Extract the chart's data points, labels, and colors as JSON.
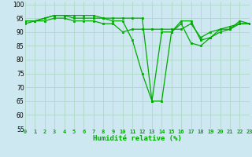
{
  "title": "",
  "xlabel": "Humidité relative (%)",
  "ylabel": "",
  "bg_color": "#cde8f0",
  "grid_color": "#b0d8c8",
  "line_color": "#00aa00",
  "xlim": [
    0,
    23
  ],
  "ylim": [
    55,
    101
  ],
  "yticks": [
    55,
    60,
    65,
    70,
    75,
    80,
    85,
    90,
    95,
    100
  ],
  "xticks": [
    0,
    1,
    2,
    3,
    4,
    5,
    6,
    7,
    8,
    9,
    10,
    11,
    12,
    13,
    14,
    15,
    16,
    17,
    18,
    19,
    20,
    21,
    22,
    23
  ],
  "series": [
    [
      94,
      94,
      95,
      96,
      96,
      96,
      96,
      96,
      95,
      95,
      95,
      95,
      95,
      65,
      65,
      90,
      94,
      94,
      87,
      88,
      91,
      91,
      94,
      93
    ],
    [
      94,
      94,
      95,
      96,
      96,
      95,
      95,
      95,
      95,
      94,
      94,
      87,
      75,
      65,
      90,
      90,
      93,
      86,
      85,
      88,
      90,
      91,
      93,
      93
    ],
    [
      93,
      94,
      94,
      95,
      95,
      94,
      94,
      94,
      93,
      93,
      90,
      91,
      91,
      91,
      91,
      91,
      91,
      93,
      88,
      90,
      91,
      92,
      93,
      93
    ]
  ]
}
